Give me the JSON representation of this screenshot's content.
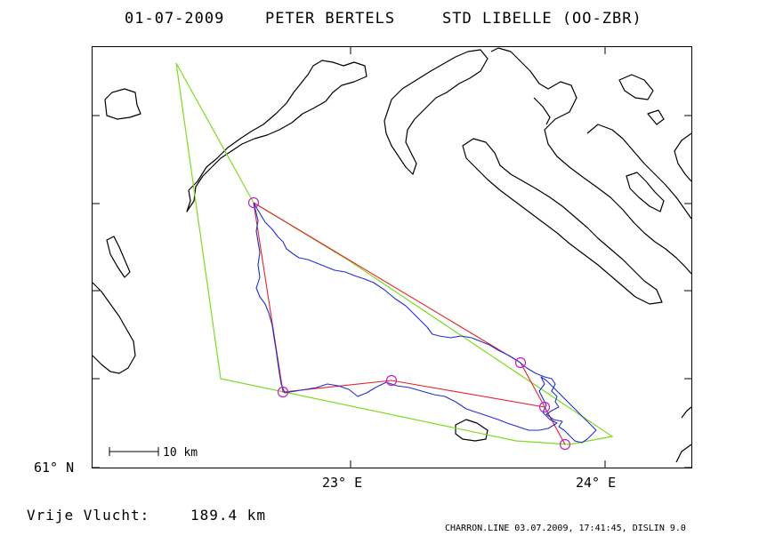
{
  "header": {
    "date": "01-07-2009",
    "pilot": "PETER BERTELS",
    "glider": "STD LIBELLE (OO-ZBR)"
  },
  "axes": {
    "y_tick_label": "61° N",
    "x_tick_labels": [
      "23° E",
      "24° E"
    ]
  },
  "scale_bar": {
    "label": "10 km"
  },
  "summary": {
    "label": "Vrije Vlucht:",
    "value": "189.4 km"
  },
  "footer": "CHARRON.LINE 03.07.2009, 17:41:45, DISLIN 9.0",
  "colors": {
    "coast": "#000000",
    "fai_triangle": "#7ddc1f",
    "task_legs": "#e8202a",
    "flight_track": "#1f2fd6",
    "turnpoints": "#c020c0",
    "frame": "#000000"
  }
}
